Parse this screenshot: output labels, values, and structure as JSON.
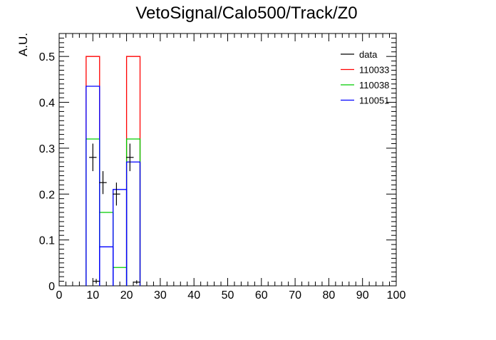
{
  "chart_data": {
    "type": "histogram",
    "title": "VetoSignal/Calo500/Track/Z0",
    "xlabel": "",
    "ylabel": "A.U.",
    "xlim": [
      0,
      100
    ],
    "ylim": [
      0,
      0.55
    ],
    "x_ticks": [
      0,
      10,
      20,
      30,
      40,
      50,
      60,
      70,
      80,
      90,
      100
    ],
    "y_ticks": [
      0,
      0.1,
      0.2,
      0.3,
      0.4,
      0.5
    ],
    "x_tick_labels": [
      "0",
      "10",
      "20",
      "30",
      "40",
      "50",
      "60",
      "70",
      "80",
      "90",
      "100"
    ],
    "y_tick_labels": [
      "0",
      "0.1",
      "0.2",
      "0.3",
      "0.4",
      "0.5"
    ],
    "bin_width": 4,
    "legend_position": "top-right",
    "series": [
      {
        "name": "data",
        "color": "#000000",
        "style": "points-with-errors",
        "points": [
          {
            "x": 10,
            "y": 0.28,
            "err": 0.03
          },
          {
            "x": 11,
            "y": 0.01,
            "err": 0.005
          },
          {
            "x": 13,
            "y": 0.225,
            "err": 0.025
          },
          {
            "x": 17,
            "y": 0.2,
            "err": 0.025
          },
          {
            "x": 21,
            "y": 0.28,
            "err": 0.03
          },
          {
            "x": 23,
            "y": 0.008,
            "err": 0.004
          }
        ]
      },
      {
        "name": "110033",
        "color": "#ff0000",
        "style": "step",
        "bins": [
          {
            "lo": 8,
            "hi": 12,
            "y": 0.5
          },
          {
            "lo": 20,
            "hi": 24,
            "y": 0.5
          }
        ]
      },
      {
        "name": "110038",
        "color": "#00cc00",
        "style": "step",
        "bins": [
          {
            "lo": 8,
            "hi": 12,
            "y": 0.32
          },
          {
            "lo": 12,
            "hi": 16,
            "y": 0.16
          },
          {
            "lo": 16,
            "hi": 20,
            "y": 0.04
          },
          {
            "lo": 20,
            "hi": 24,
            "y": 0.32
          }
        ]
      },
      {
        "name": "110051",
        "color": "#0000ff",
        "style": "step",
        "bins": [
          {
            "lo": 8,
            "hi": 12,
            "y": 0.435
          },
          {
            "lo": 12,
            "hi": 16,
            "y": 0.085
          },
          {
            "lo": 16,
            "hi": 20,
            "y": 0.21
          },
          {
            "lo": 20,
            "hi": 24,
            "y": 0.27
          }
        ]
      }
    ]
  }
}
